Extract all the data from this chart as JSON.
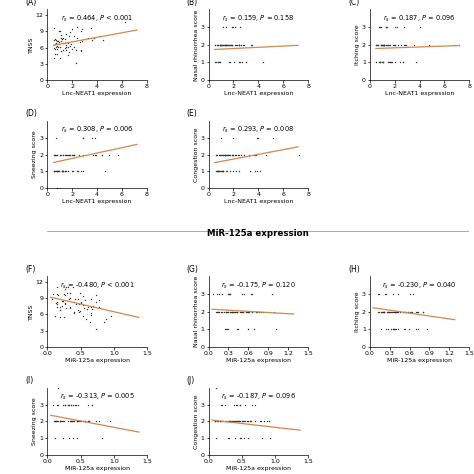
{
  "title_mid": "MiR-125a expression",
  "panels": [
    {
      "label": "(A)",
      "rs": "$r_s$ = 0.464, $P$ < 0.001",
      "ylabel": "TNSS",
      "xlabel": "Lnc-NEAT1 expression",
      "xlim": [
        0,
        8
      ],
      "ylim": [
        0,
        13
      ],
      "xticks": [
        0,
        2,
        4,
        6,
        8
      ],
      "yticks": [
        0,
        3,
        6,
        9,
        12
      ],
      "slope": 0.42,
      "intercept": 6.2,
      "x_range": [
        0.5,
        7.2
      ]
    },
    {
      "label": "(B)",
      "rs": "$r_s$ = 0.159, $P$ = 0.158",
      "ylabel": "Nasal rhinorrhea score",
      "xlabel": "Lnc-NEAT1 expression",
      "xlim": [
        0,
        8
      ],
      "ylim": [
        0,
        4
      ],
      "xticks": [
        0,
        2,
        4,
        6,
        8
      ],
      "yticks": [
        0,
        1,
        2,
        3
      ],
      "slope": 0.035,
      "intercept": 1.72,
      "x_range": [
        0.5,
        7.2
      ]
    },
    {
      "label": "(C)",
      "rs": "$r_s$ = 0.187, $P$ = 0.096",
      "ylabel": "Itching score",
      "xlabel": "Lnc-NEAT1 expression",
      "xlim": [
        0,
        8
      ],
      "ylim": [
        0,
        4
      ],
      "xticks": [
        0,
        2,
        4,
        6,
        8
      ],
      "yticks": [
        0,
        1,
        2,
        3
      ],
      "slope": 0.025,
      "intercept": 1.78,
      "x_range": [
        0.5,
        7.2
      ]
    },
    {
      "label": "(D)",
      "rs": "$r_s$ = 0.308, $P$ = 0.006",
      "ylabel": "Sneezing score",
      "xlabel": "Lnc-NEAT1 expression",
      "xlim": [
        0,
        8
      ],
      "ylim": [
        0,
        4
      ],
      "xticks": [
        0,
        2,
        4,
        6,
        8
      ],
      "yticks": [
        0,
        1,
        2,
        3
      ],
      "slope": 0.16,
      "intercept": 1.45,
      "x_range": [
        0.5,
        7.2
      ]
    },
    {
      "label": "(E)",
      "rs": "$r_s$ = 0.293, $P$ = 0.008",
      "ylabel": "Congestion score",
      "xlabel": "Lnc-NEAT1 expression",
      "xlim": [
        0,
        8
      ],
      "ylim": [
        0,
        4
      ],
      "xticks": [
        0,
        2,
        4,
        6,
        8
      ],
      "yticks": [
        0,
        1,
        2,
        3
      ],
      "slope": 0.14,
      "intercept": 1.45,
      "x_range": [
        0.5,
        7.2
      ]
    },
    {
      "label": "(F)",
      "rs": "$r_s$ = -0.480, $P$ < 0.001",
      "ylabel": "TNSS",
      "xlabel": "MiR-125a expression",
      "xlim": [
        0.0,
        1.5
      ],
      "ylim": [
        0,
        13
      ],
      "xticks": [
        0.0,
        0.5,
        1.0,
        1.5
      ],
      "yticks": [
        0,
        3,
        6,
        9,
        12
      ],
      "slope": -2.8,
      "intercept": 9.3,
      "x_range": [
        0.05,
        1.38
      ]
    },
    {
      "label": "(G)",
      "rs": "$r_s$ = -0.175, $P$ = 0.120",
      "ylabel": "Nasal rhinorrhea score",
      "xlabel": "MiR-125a expression",
      "xlim": [
        0.0,
        1.5
      ],
      "ylim": [
        0,
        4
      ],
      "xticks": [
        0.0,
        0.3,
        0.6,
        0.9,
        1.2,
        1.5
      ],
      "yticks": [
        0,
        1,
        2,
        3
      ],
      "slope": -0.22,
      "intercept": 2.15,
      "x_range": [
        0.05,
        1.28
      ]
    },
    {
      "label": "(H)",
      "rs": "$r_s$ = -0.230, $P$ = 0.040",
      "ylabel": "Itching score",
      "xlabel": "MiR-125a expression",
      "xlim": [
        0.0,
        1.5
      ],
      "ylim": [
        0,
        4
      ],
      "xticks": [
        0.0,
        0.3,
        0.6,
        0.9,
        1.2,
        1.5
      ],
      "yticks": [
        0,
        1,
        2,
        3
      ],
      "slope": -0.55,
      "intercept": 2.25,
      "x_range": [
        0.05,
        1.28
      ]
    },
    {
      "label": "(I)",
      "rs": "$r_s$ = -0.313, $P$ = 0.005",
      "ylabel": "Sneezing score",
      "xlabel": "MiR-125a expression",
      "xlim": [
        0.0,
        1.5
      ],
      "ylim": [
        0,
        4
      ],
      "xticks": [
        0.0,
        0.5,
        1.0,
        1.5
      ],
      "yticks": [
        0,
        1,
        2,
        3
      ],
      "slope": -0.75,
      "intercept": 2.4,
      "x_range": [
        0.05,
        1.38
      ]
    },
    {
      "label": "(J)",
      "rs": "$r_s$ = -0.187, $P$ = 0.096",
      "ylabel": "Congestion score",
      "xlabel": "MiR-125a expression",
      "xlim": [
        0.0,
        1.5
      ],
      "ylim": [
        0,
        4
      ],
      "xticks": [
        0.0,
        0.5,
        1.0,
        1.5
      ],
      "yticks": [
        0,
        1,
        2,
        3
      ],
      "slope": -0.45,
      "intercept": 2.1,
      "x_range": [
        0.05,
        1.38
      ]
    }
  ],
  "scatter_color": "#333333",
  "line_color": "#D4874E",
  "marker": ".",
  "markersize": 2.0,
  "tick_fontsize": 4.5,
  "axis_label_fontsize": 4.5,
  "panel_label_fontsize": 5.5,
  "rs_fontsize": 4.8
}
